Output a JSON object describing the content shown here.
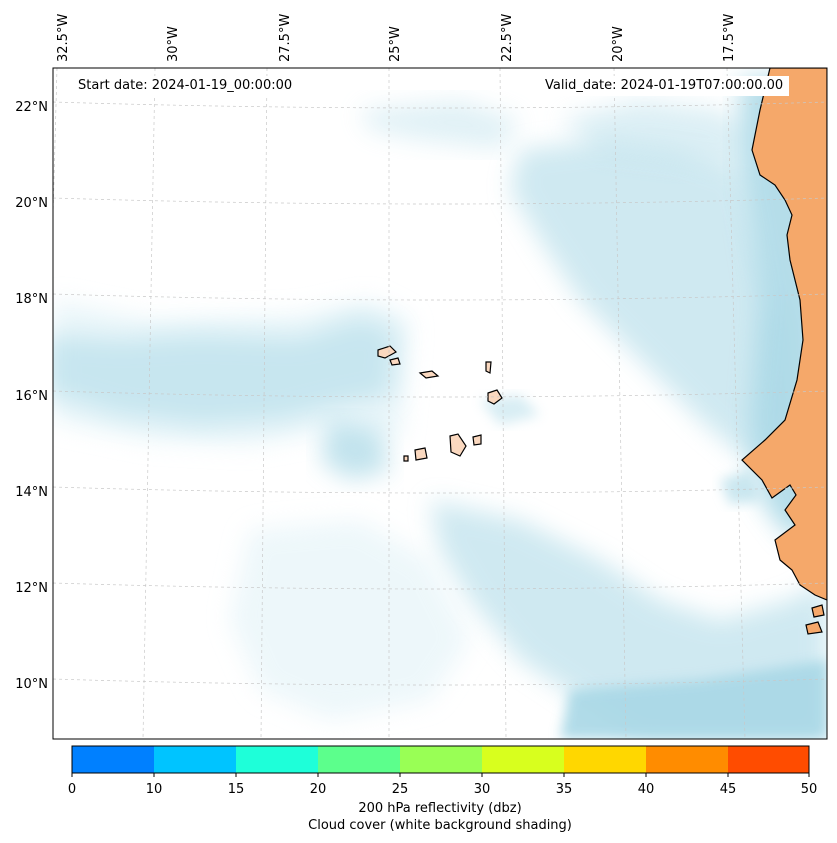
{
  "map": {
    "start_date": "Start date: 2024-01-19_00:00:00",
    "valid_date": "Valid_date: 2024-01-19T07:00:00.00",
    "lon_labels": [
      "32.5°W",
      "30°W",
      "27.5°W",
      "25°W",
      "22.5°W",
      "20°W",
      "17.5°W"
    ],
    "lat_labels": [
      "22°N",
      "20°N",
      "18°N",
      "16°N",
      "14°N",
      "12°N",
      "10°N"
    ],
    "colors": {
      "land": "#f5a86a",
      "land_light": "#fad8bf",
      "cloud": "#a9d8e6",
      "cloud_light": "#dcf0f6",
      "coastline": "#000000",
      "grid": "#c8c8c8"
    }
  },
  "colorbar": {
    "title": "200 hPa reflectivity (dbz)",
    "subtitle": "Cloud cover (white background shading)",
    "ticks": [
      "0",
      "10",
      "15",
      "20",
      "25",
      "30",
      "35",
      "40",
      "45",
      "50"
    ],
    "colors": [
      "#0080ff",
      "#00c4ff",
      "#1effd9",
      "#5cff8c",
      "#99ff55",
      "#d8ff1e",
      "#ffd700",
      "#ff8c00",
      "#ff4c00"
    ]
  }
}
